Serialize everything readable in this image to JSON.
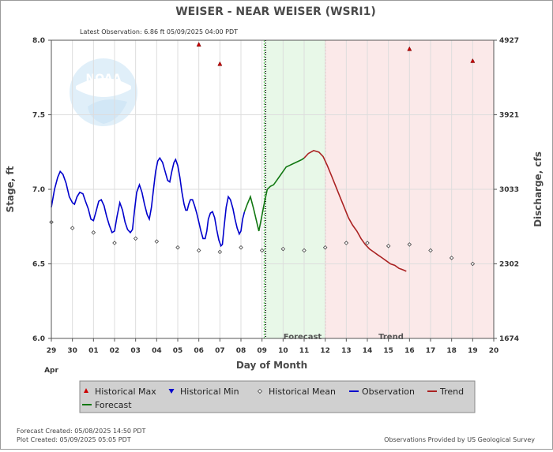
{
  "chart_data": {
    "type": "line",
    "title": "WEISER - NEAR WEISER  (WSRI1)",
    "subtitle": "Latest Observation: 6.86 ft 05/09/2025 04:00 PDT",
    "xlabel": "Day of Month",
    "month_label": "Apr",
    "ylabel_left": "Stage, ft",
    "ylabel_right": "Discharge, cfs",
    "x_ticks": [
      "29",
      "30",
      "01",
      "02",
      "03",
      "04",
      "05",
      "06",
      "07",
      "08",
      "09",
      "10",
      "11",
      "12",
      "13",
      "14",
      "15",
      "16",
      "17",
      "18",
      "19",
      "20"
    ],
    "y_ticks_left": [
      "8.0",
      "7.5",
      "7.0",
      "6.5",
      "6.0"
    ],
    "y_ticks_right": [
      "4927",
      "3921",
      "3033",
      "2302",
      "1674"
    ],
    "ylim": [
      6.0,
      8.0
    ],
    "xlim": [
      0,
      21
    ],
    "bands": [
      {
        "label": "Forecast",
        "x0": 10.1,
        "x1": 13.0,
        "color": "#e8f8e8",
        "border": "#55cc55"
      },
      {
        "label": "Trend",
        "x0": 13.0,
        "x1": 21.0,
        "color": "#fbe9e9",
        "border": "#e08080"
      }
    ],
    "latest_obs_x": 10.17,
    "series": [
      {
        "name": "Observation",
        "color": "#0000cc",
        "points": [
          [
            0.0,
            6.88
          ],
          [
            0.15,
            7.0
          ],
          [
            0.3,
            7.08
          ],
          [
            0.42,
            7.12
          ],
          [
            0.55,
            7.1
          ],
          [
            0.7,
            7.04
          ],
          [
            0.85,
            6.95
          ],
          [
            1.0,
            6.91
          ],
          [
            1.1,
            6.9
          ],
          [
            1.22,
            6.95
          ],
          [
            1.35,
            6.98
          ],
          [
            1.5,
            6.97
          ],
          [
            1.62,
            6.92
          ],
          [
            1.75,
            6.87
          ],
          [
            1.88,
            6.8
          ],
          [
            2.0,
            6.79
          ],
          [
            2.12,
            6.85
          ],
          [
            2.25,
            6.92
          ],
          [
            2.37,
            6.93
          ],
          [
            2.5,
            6.89
          ],
          [
            2.62,
            6.82
          ],
          [
            2.75,
            6.76
          ],
          [
            2.88,
            6.71
          ],
          [
            3.0,
            6.72
          ],
          [
            3.12,
            6.82
          ],
          [
            3.25,
            6.91
          ],
          [
            3.38,
            6.86
          ],
          [
            3.5,
            6.78
          ],
          [
            3.62,
            6.73
          ],
          [
            3.75,
            6.71
          ],
          [
            3.85,
            6.73
          ],
          [
            3.95,
            6.86
          ],
          [
            4.05,
            6.98
          ],
          [
            4.18,
            7.03
          ],
          [
            4.3,
            6.98
          ],
          [
            4.42,
            6.9
          ],
          [
            4.55,
            6.83
          ],
          [
            4.65,
            6.8
          ],
          [
            4.75,
            6.88
          ],
          [
            4.85,
            7.0
          ],
          [
            4.95,
            7.12
          ],
          [
            5.05,
            7.19
          ],
          [
            5.15,
            7.21
          ],
          [
            5.28,
            7.18
          ],
          [
            5.4,
            7.12
          ],
          [
            5.52,
            7.06
          ],
          [
            5.62,
            7.05
          ],
          [
            5.72,
            7.12
          ],
          [
            5.82,
            7.18
          ],
          [
            5.9,
            7.2
          ],
          [
            6.0,
            7.16
          ],
          [
            6.1,
            7.08
          ],
          [
            6.2,
            6.98
          ],
          [
            6.3,
            6.9
          ],
          [
            6.38,
            6.86
          ],
          [
            6.45,
            6.86
          ],
          [
            6.52,
            6.9
          ],
          [
            6.6,
            6.93
          ],
          [
            6.7,
            6.93
          ],
          [
            6.8,
            6.89
          ],
          [
            6.9,
            6.84
          ],
          [
            7.0,
            6.78
          ],
          [
            7.1,
            6.72
          ],
          [
            7.2,
            6.67
          ],
          [
            7.3,
            6.67
          ],
          [
            7.38,
            6.72
          ],
          [
            7.45,
            6.8
          ],
          [
            7.55,
            6.84
          ],
          [
            7.65,
            6.85
          ],
          [
            7.75,
            6.81
          ],
          [
            7.85,
            6.73
          ],
          [
            7.95,
            6.66
          ],
          [
            8.05,
            6.62
          ],
          [
            8.12,
            6.63
          ],
          [
            8.2,
            6.75
          ],
          [
            8.3,
            6.88
          ],
          [
            8.4,
            6.95
          ],
          [
            8.5,
            6.93
          ],
          [
            8.62,
            6.87
          ],
          [
            8.72,
            6.8
          ],
          [
            8.82,
            6.74
          ],
          [
            8.92,
            6.7
          ],
          [
            9.0,
            6.72
          ],
          [
            9.08,
            6.8
          ],
          [
            9.17,
            6.85
          ]
        ]
      },
      {
        "name": "Forecast",
        "color": "#117711",
        "points": [
          [
            9.17,
            6.85
          ],
          [
            9.3,
            6.9
          ],
          [
            9.45,
            6.95
          ],
          [
            9.6,
            6.87
          ],
          [
            9.75,
            6.78
          ],
          [
            9.85,
            6.72
          ],
          [
            9.95,
            6.79
          ],
          [
            10.1,
            6.9
          ],
          [
            10.25,
            7.0
          ],
          [
            10.4,
            7.02
          ],
          [
            10.55,
            7.03
          ],
          [
            10.7,
            7.06
          ],
          [
            10.85,
            7.09
          ],
          [
            11.0,
            7.12
          ],
          [
            11.15,
            7.15
          ],
          [
            11.3,
            7.16
          ],
          [
            11.45,
            7.17
          ],
          [
            11.6,
            7.18
          ],
          [
            11.75,
            7.19
          ],
          [
            11.9,
            7.2
          ],
          [
            12.0,
            7.21
          ]
        ]
      },
      {
        "name": "Trend",
        "color": "#aa2222",
        "points": [
          [
            12.0,
            7.21
          ],
          [
            12.2,
            7.24
          ],
          [
            12.45,
            7.26
          ],
          [
            12.7,
            7.25
          ],
          [
            12.9,
            7.22
          ],
          [
            13.1,
            7.16
          ],
          [
            13.3,
            7.09
          ],
          [
            13.5,
            7.02
          ],
          [
            13.7,
            6.95
          ],
          [
            13.9,
            6.88
          ],
          [
            14.1,
            6.81
          ],
          [
            14.3,
            6.76
          ],
          [
            14.5,
            6.72
          ],
          [
            14.7,
            6.67
          ],
          [
            14.9,
            6.63
          ],
          [
            15.1,
            6.6
          ],
          [
            15.3,
            6.58
          ],
          [
            15.5,
            6.56
          ],
          [
            15.7,
            6.54
          ],
          [
            15.9,
            6.52
          ],
          [
            16.1,
            6.5
          ],
          [
            16.3,
            6.49
          ],
          [
            16.5,
            6.47
          ],
          [
            16.7,
            6.46
          ],
          [
            16.85,
            6.45
          ]
        ]
      }
    ],
    "historical_max": [
      [
        7.0,
        7.97
      ],
      [
        8.0,
        7.84
      ],
      [
        17.0,
        7.94
      ],
      [
        20.0,
        7.86
      ]
    ],
    "historical_mean": [
      [
        0.0,
        6.78
      ],
      [
        1.0,
        6.74
      ],
      [
        2.0,
        6.71
      ],
      [
        3.0,
        6.64
      ],
      [
        4.0,
        6.67
      ],
      [
        5.0,
        6.65
      ],
      [
        6.0,
        6.61
      ],
      [
        7.0,
        6.59
      ],
      [
        8.0,
        6.58
      ],
      [
        9.0,
        6.61
      ],
      [
        10.0,
        6.59
      ],
      [
        11.0,
        6.6
      ],
      [
        12.0,
        6.59
      ],
      [
        13.0,
        6.61
      ],
      [
        14.0,
        6.64
      ],
      [
        15.0,
        6.64
      ],
      [
        16.0,
        6.62
      ],
      [
        17.0,
        6.63
      ],
      [
        18.0,
        6.59
      ],
      [
        19.0,
        6.54
      ],
      [
        20.0,
        6.5
      ]
    ],
    "legend": [
      {
        "label": "Historical Max",
        "marker": "triangle-up",
        "color": "#cc0000"
      },
      {
        "label": "Historical Min",
        "marker": "triangle-down",
        "color": "#0000cc"
      },
      {
        "label": "Historical Mean",
        "marker": "diamond",
        "color": "#444444"
      },
      {
        "label": "Observation",
        "marker": "line",
        "color": "#0000cc"
      },
      {
        "label": "Trend",
        "marker": "line",
        "color": "#aa2222"
      },
      {
        "label": "Forecast",
        "marker": "line",
        "color": "#117711"
      }
    ],
    "legend_placement": "bottom",
    "grid": true
  },
  "watermark_text": "NOAA",
  "footer": {
    "forecast_created": "Forecast Created: 05/08/2025 14:50 PDT",
    "plot_created": "Plot Created: 05/09/2025 05:05 PDT",
    "provider": "Observations Provided by US Geological Survey"
  }
}
